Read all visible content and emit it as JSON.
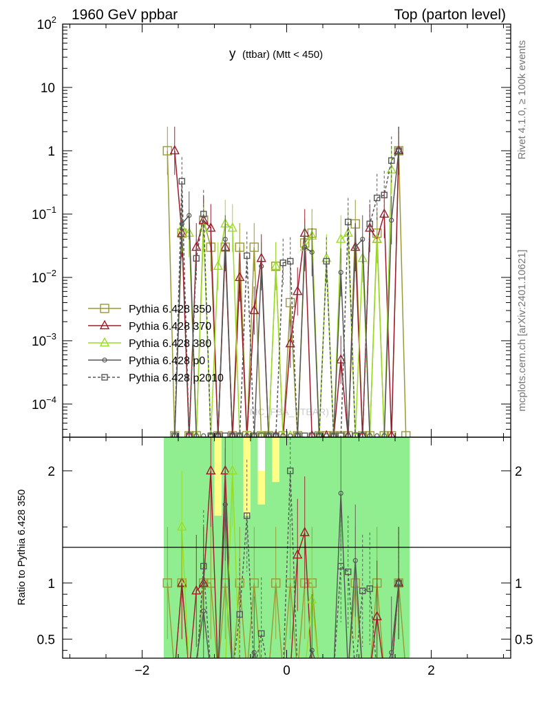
{
  "header": {
    "left": "1960 GeV ppbar",
    "right": "Top (parton level)"
  },
  "side_labels": {
    "rivet": "Rivet 4.1.0, ≥ 100k events",
    "mcplots": "mcplots.cern.ch [arXiv:2401.10621]"
  },
  "watermark": "(MC_FBA_TTBAR)",
  "chart_data": {
    "type": "line",
    "title": "y (ttbar) (Mtt < 450)",
    "title_main": "y",
    "title_sub": "(ttbar) (Mtt < 450)",
    "yscale": "log",
    "xlim": [
      -3.1,
      3.1
    ],
    "ylim": [
      3e-05,
      100
    ],
    "ratio_ylim": [
      0.33,
      2.3
    ],
    "ratio_ylabel": "Ratio to Pythia 6.428 350",
    "grid": false,
    "legend_position": "middle-left",
    "x_ticks": [
      "−2",
      "0",
      "2"
    ],
    "x_tick_values": [
      -2,
      0,
      2
    ],
    "y_ticks": [
      {
        "v": 100,
        "label": "10",
        "sup": "2"
      },
      {
        "v": 10,
        "label": "10",
        "sup": ""
      },
      {
        "v": 1,
        "label": "1",
        "sup": ""
      },
      {
        "v": 0.1,
        "label": "10",
        "sup": "−1"
      },
      {
        "v": 0.01,
        "label": "10",
        "sup": "−2"
      },
      {
        "v": 0.001,
        "label": "10",
        "sup": "−3"
      },
      {
        "v": 0.0001,
        "label": "10",
        "sup": "−4"
      }
    ],
    "ratio_ticks": [
      {
        "v": 0.5,
        "label": "0.5"
      },
      {
        "v": 1,
        "label": "1"
      },
      {
        "v": 2,
        "label": "2"
      }
    ],
    "series": [
      {
        "name": "Pythia 6.428 350",
        "color": "#999933",
        "marker": "square",
        "dash": false,
        "x": [
          -1.65,
          -1.55,
          -1.45,
          -1.35,
          -1.25,
          -1.15,
          -1.05,
          -0.95,
          -0.85,
          -0.75,
          -0.65,
          -0.55,
          -0.45,
          -0.35,
          -0.25,
          -0.15,
          -0.05,
          0.05,
          0.15,
          0.25,
          0.35,
          0.45,
          0.55,
          0.65,
          0.75,
          0.85,
          0.95,
          1.05,
          1.15,
          1.25,
          1.35,
          1.45,
          1.55,
          1.65
        ],
        "y": [
          1.0,
          3e-05,
          0.05,
          3e-05,
          3e-05,
          0.08,
          0.03,
          3e-05,
          0.03,
          3e-05,
          0.03,
          3e-05,
          0.03,
          3e-05,
          3e-05,
          0.015,
          3e-05,
          0.004,
          3e-05,
          0.035,
          0.05,
          3e-05,
          3e-05,
          3e-05,
          3e-05,
          3e-05,
          0.07,
          3e-05,
          3e-05,
          0.05,
          3e-05,
          3e-05,
          1.0,
          3e-05
        ],
        "ratio": [
          1.0,
          0.2,
          1.0,
          0.2,
          0.2,
          1.0,
          1.0,
          0.2,
          1.0,
          0.2,
          1.0,
          0.2,
          1.0,
          0.2,
          0.2,
          1.0,
          0.2,
          1.0,
          0.2,
          1.0,
          1.0,
          0.2,
          0.2,
          0.2,
          0.2,
          0.2,
          1.0,
          0.2,
          0.2,
          1.0,
          0.2,
          0.2,
          1.0,
          0.2
        ]
      },
      {
        "name": "Pythia 6.428 370",
        "color": "#a0182a",
        "marker": "triangle",
        "dash": false,
        "x": [
          -1.55,
          -1.45,
          -1.35,
          -1.25,
          -1.15,
          -1.05,
          -0.95,
          -0.85,
          -0.75,
          -0.65,
          -0.55,
          -0.45,
          -0.35,
          -0.25,
          -0.15,
          -0.05,
          0.05,
          0.15,
          0.25,
          0.35,
          0.45,
          0.55,
          0.65,
          0.75,
          0.85,
          0.95,
          1.05,
          1.15,
          1.25,
          1.35,
          1.45,
          1.55
        ],
        "y": [
          1.0,
          0.05,
          3e-05,
          0.03,
          0.08,
          0.06,
          3e-05,
          0.03,
          3e-05,
          0.01,
          3e-05,
          0.003,
          0.02,
          3e-05,
          3e-05,
          3e-05,
          0.0009,
          0.006,
          0.05,
          3e-05,
          3e-05,
          3e-05,
          3e-05,
          0.0005,
          3e-05,
          0.03,
          3e-05,
          0.06,
          0.04,
          0.1,
          3e-05,
          1.0
        ],
        "ratio": [
          0.2,
          1.0,
          0.2,
          0.93,
          1.0,
          2.0,
          0.2,
          2.0,
          0.2,
          0.2,
          0.2,
          0.2,
          0.2,
          0.2,
          0.2,
          0.2,
          0.2,
          1.25,
          1.45,
          0.2,
          0.2,
          0.2,
          0.2,
          0.2,
          0.2,
          0.2,
          0.2,
          0.2,
          0.7,
          0.2,
          0.2,
          1.0
        ]
      },
      {
        "name": "Pythia 6.428 380",
        "color": "#99dd22",
        "marker": "triangle",
        "dash": false,
        "x": [
          -1.45,
          -1.35,
          -1.25,
          -1.15,
          -1.05,
          -0.95,
          -0.85,
          -0.75,
          -0.65,
          -0.55,
          -0.45,
          -0.35,
          -0.25,
          -0.15,
          -0.05,
          0.05,
          0.15,
          0.25,
          0.35,
          0.45,
          0.55,
          0.65,
          0.75,
          0.85,
          0.95,
          1.05,
          1.15,
          1.25,
          1.35,
          1.45
        ],
        "y": [
          0.06,
          0.05,
          3e-05,
          0.06,
          3e-05,
          0.015,
          0.07,
          0.06,
          3e-05,
          3e-05,
          3e-05,
          3e-05,
          3e-05,
          0.015,
          3e-05,
          3e-05,
          3e-05,
          0.03,
          0.045,
          3e-05,
          0.02,
          3e-05,
          0.04,
          0.05,
          3e-05,
          0.02,
          3e-05,
          0.04,
          3e-05,
          0.5
        ],
        "ratio": [
          1.5,
          0.2,
          0.2,
          0.2,
          0.2,
          0.2,
          0.2,
          2.0,
          0.2,
          0.2,
          0.2,
          0.2,
          0.2,
          0.2,
          0.2,
          0.2,
          0.2,
          0.2,
          0.85,
          0.2,
          0.2,
          0.2,
          0.2,
          0.2,
          0.2,
          0.2,
          0.2,
          0.2,
          0.2,
          0.2
        ]
      },
      {
        "name": "Pythia 6.428 p0",
        "color": "#555555",
        "marker": "circle",
        "dash": false,
        "x": [
          -1.55,
          -1.45,
          -1.35,
          -1.25,
          -1.15,
          -1.05,
          -0.95,
          -0.85,
          -0.75,
          -0.65,
          -0.55,
          -0.45,
          -0.35,
          -0.25,
          -0.15,
          -0.05,
          0.05,
          0.15,
          0.25,
          0.35,
          0.45,
          0.55,
          0.65,
          0.75,
          0.85,
          0.95,
          1.05,
          1.15,
          1.25,
          1.35,
          1.45,
          1.55
        ],
        "y": [
          3e-05,
          0.07,
          0.095,
          3e-05,
          3e-05,
          3e-05,
          3e-05,
          0.04,
          3e-05,
          3e-05,
          3e-05,
          3e-05,
          0.015,
          3e-05,
          3e-05,
          3e-05,
          3e-05,
          3e-05,
          0.03,
          0.025,
          3e-05,
          3e-05,
          3e-05,
          0.012,
          3e-05,
          0.03,
          0.04,
          3e-05,
          3e-05,
          3e-05,
          0.08,
          1.0
        ],
        "ratio": [
          0.2,
          0.2,
          0.2,
          0.31,
          0.75,
          0.2,
          0.2,
          1.7,
          0.2,
          0.2,
          0.2,
          0.38,
          0.2,
          0.2,
          0.2,
          0.2,
          0.2,
          0.2,
          0.2,
          0.4,
          0.2,
          0.2,
          0.2,
          1.8,
          0.2,
          1.2,
          0.2,
          0.2,
          0.2,
          0.2,
          0.38,
          1.0
        ]
      },
      {
        "name": "Pythia 6.428 p2010",
        "color": "#555555",
        "marker": "square",
        "dash": true,
        "x": [
          -1.55,
          -1.45,
          -1.35,
          -1.25,
          -1.15,
          -1.05,
          -0.95,
          -0.85,
          -0.75,
          -0.65,
          -0.55,
          -0.45,
          -0.35,
          -0.25,
          -0.15,
          -0.05,
          0.05,
          0.15,
          0.25,
          0.35,
          0.45,
          0.55,
          0.65,
          0.75,
          0.85,
          0.95,
          1.05,
          1.15,
          1.25,
          1.35,
          1.45,
          1.55
        ],
        "y": [
          3e-05,
          0.33,
          3e-05,
          0.02,
          0.1,
          3e-05,
          3e-05,
          3e-05,
          3e-05,
          3e-05,
          0.022,
          3e-05,
          3e-05,
          3e-05,
          3e-05,
          0.017,
          0.018,
          3e-05,
          3e-05,
          3e-05,
          3e-05,
          0.018,
          3e-05,
          3e-05,
          0.075,
          3e-05,
          3e-05,
          0.07,
          0.18,
          0.2,
          0.7,
          1.0
        ],
        "ratio": [
          0.2,
          0.2,
          0.2,
          0.2,
          1.15,
          0.2,
          0.2,
          0.2,
          0.2,
          0.72,
          1.6,
          0.2,
          0.55,
          0.2,
          0.2,
          0.2,
          2.0,
          0.2,
          0.2,
          0.2,
          0.2,
          0.2,
          0.2,
          1.15,
          1.1,
          0.2,
          0.93,
          0.95,
          0.2,
          0.2,
          0.2,
          1.0
        ]
      }
    ],
    "bands": {
      "x_edges": [
        -1.7,
        -1.6,
        -1.5,
        -1.4,
        -1.3,
        -1.2,
        -1.1,
        -1.0,
        -0.9,
        -0.8,
        -0.7,
        -0.6,
        -0.5,
        -0.4,
        -0.3,
        -0.2,
        -0.1,
        0.0,
        0.1,
        0.2,
        0.3,
        0.4,
        0.5,
        0.6,
        0.7,
        0.8,
        0.9,
        1.0,
        1.1,
        1.2,
        1.3,
        1.4,
        1.5,
        1.6,
        1.7
      ],
      "yellow_lo": [
        0.3,
        0.3,
        0.3,
        0.3,
        0.3,
        0.3,
        0.6,
        0.55,
        0.3,
        0.5,
        0.3,
        0.3,
        0.5,
        0.3,
        0.3,
        0.55,
        0.3,
        0.3,
        0.3,
        0.6,
        0.3,
        0.3,
        0.3,
        0.3,
        0.3,
        0.3,
        0.3,
        0.3,
        0.3,
        0.3,
        0.3,
        0.3,
        0.3,
        0.3
      ],
      "yellow_hi": [
        2.3,
        2.3,
        2.3,
        2.3,
        2.3,
        2.3,
        2.3,
        2.3,
        1.9,
        2.1,
        2.0,
        2.3,
        1.9,
        2.0,
        1.7,
        2.3,
        2.3,
        2.3,
        2.3,
        2.3,
        1.7,
        2.3,
        2.3,
        1.9,
        2.3,
        1.7,
        2.3,
        2.3,
        2.3,
        2.3,
        2.3,
        2.3,
        2.3,
        2.3
      ],
      "green_lo": [
        0.3,
        0.3,
        0.3,
        0.3,
        0.3,
        0.3,
        0.3,
        0.3,
        0.3,
        0.3,
        0.3,
        0.3,
        0.3,
        0.3,
        0.3,
        0.3,
        0.3,
        0.3,
        0.3,
        0.3,
        0.3,
        0.3,
        0.3,
        0.3,
        0.3,
        0.3,
        0.3,
        0.3,
        0.3,
        0.3,
        0.3,
        0.3,
        0.3,
        0.3
      ],
      "green_hi": [
        2.3,
        2.3,
        2.3,
        2.3,
        2.3,
        2.3,
        2.3,
        1.6,
        2.3,
        2.3,
        2.3,
        1.6,
        2.3,
        1.7,
        2.3,
        1.9,
        2.3,
        2.3,
        2.3,
        2.3,
        2.3,
        2.3,
        2.3,
        2.3,
        2.3,
        2.3,
        2.3,
        2.3,
        2.3,
        2.3,
        2.3,
        2.3,
        2.3,
        2.3
      ]
    }
  }
}
